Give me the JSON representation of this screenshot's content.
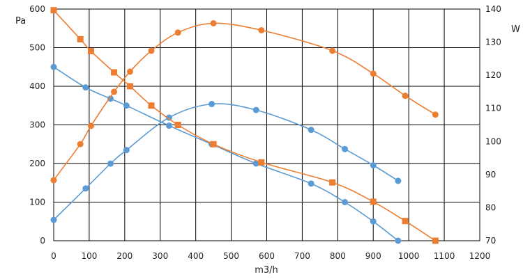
{
  "chart_data": {
    "type": "line",
    "xlabel": "m3/h",
    "ylabel": "Pa",
    "y2label": "W",
    "xlim": [
      0,
      1200
    ],
    "ylim": [
      0,
      600
    ],
    "y2lim": [
      70,
      140
    ],
    "xticks": [
      0,
      100,
      200,
      300,
      400,
      500,
      600,
      700,
      800,
      900,
      1000,
      1100,
      1200
    ],
    "yticks": [
      0,
      100,
      200,
      300,
      400,
      500,
      600
    ],
    "y2ticks": [
      70,
      80,
      90,
      100,
      110,
      120,
      130,
      140
    ],
    "grid": true,
    "series": [
      {
        "axis": "y",
        "color": "#5b9bd5",
        "marker": "circle",
        "x": [
          0,
          90,
          160,
          205,
          325,
          445,
          570,
          725,
          820,
          900,
          970
        ],
        "y": [
          450,
          397,
          368,
          350,
          298,
          250,
          200,
          148,
          100,
          50,
          0
        ]
      },
      {
        "axis": "y2",
        "color": "#5b9bd5",
        "marker": "circle",
        "x": [
          0,
          90,
          160,
          205,
          325,
          445,
          570,
          725,
          820,
          900,
          970
        ],
        "y": [
          76.3,
          85.8,
          93.3,
          97.4,
          107.2,
          111.3,
          109.5,
          103.5,
          97.7,
          92.8,
          88.1
        ]
      },
      {
        "axis": "y",
        "color": "#ed7d31",
        "marker": "square",
        "x": [
          0,
          75,
          105,
          170,
          215,
          275,
          350,
          450,
          585,
          785,
          900,
          990,
          1075
        ],
        "y": [
          597,
          522,
          491,
          436,
          400,
          350,
          300,
          250,
          203,
          151,
          101,
          51,
          0
        ]
      },
      {
        "axis": "y2",
        "color": "#ed7d31",
        "marker": "circle",
        "x": [
          0,
          75,
          105,
          170,
          215,
          275,
          350,
          450,
          585,
          785,
          900,
          990,
          1075
        ],
        "y": [
          88.3,
          99.2,
          104.7,
          115.0,
          121.1,
          127.4,
          132.9,
          135.7,
          133.6,
          127.4,
          120.5,
          113.8,
          108.1
        ]
      }
    ]
  }
}
